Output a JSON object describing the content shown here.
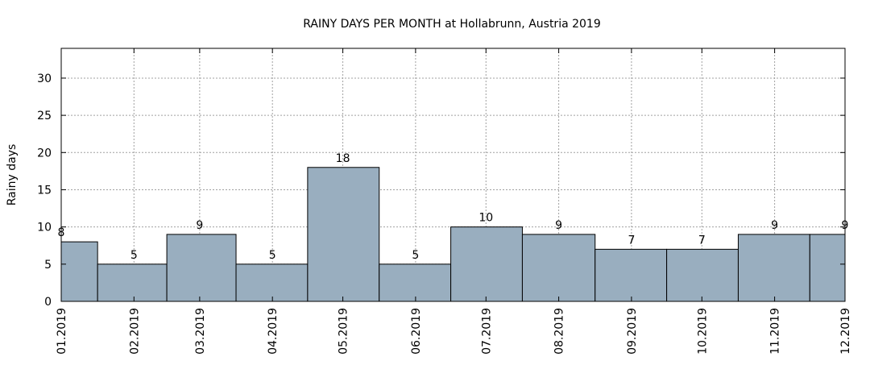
{
  "chart_data": {
    "type": "bar",
    "title": "RAINY DAYS PER MONTH at Hollabrunn, Austria 2019",
    "xlabel": "",
    "ylabel": "Rainy days",
    "ylim": [
      0,
      34
    ],
    "yticks": [
      0,
      5,
      10,
      15,
      20,
      25,
      30
    ],
    "grid": true,
    "x_months": [
      "2019-01",
      "2019-02",
      "2019-03",
      "2019-04",
      "2019-05",
      "2019-06",
      "2019-07",
      "2019-08",
      "2019-09",
      "2019-10",
      "2019-11",
      "2019-12"
    ],
    "categories": [
      "01.2019",
      "02.2019",
      "03.2019",
      "04.2019",
      "05.2019",
      "06.2019",
      "07.2019",
      "08.2019",
      "09.2019",
      "10.2019",
      "11.2019",
      "12.2019"
    ],
    "values": [
      8,
      5,
      9,
      5,
      18,
      5,
      10,
      9,
      7,
      7,
      9,
      9
    ],
    "bar_color": "#99aebf",
    "bar_edge_color": "#000000",
    "grid_color": "#a0a0a0"
  }
}
